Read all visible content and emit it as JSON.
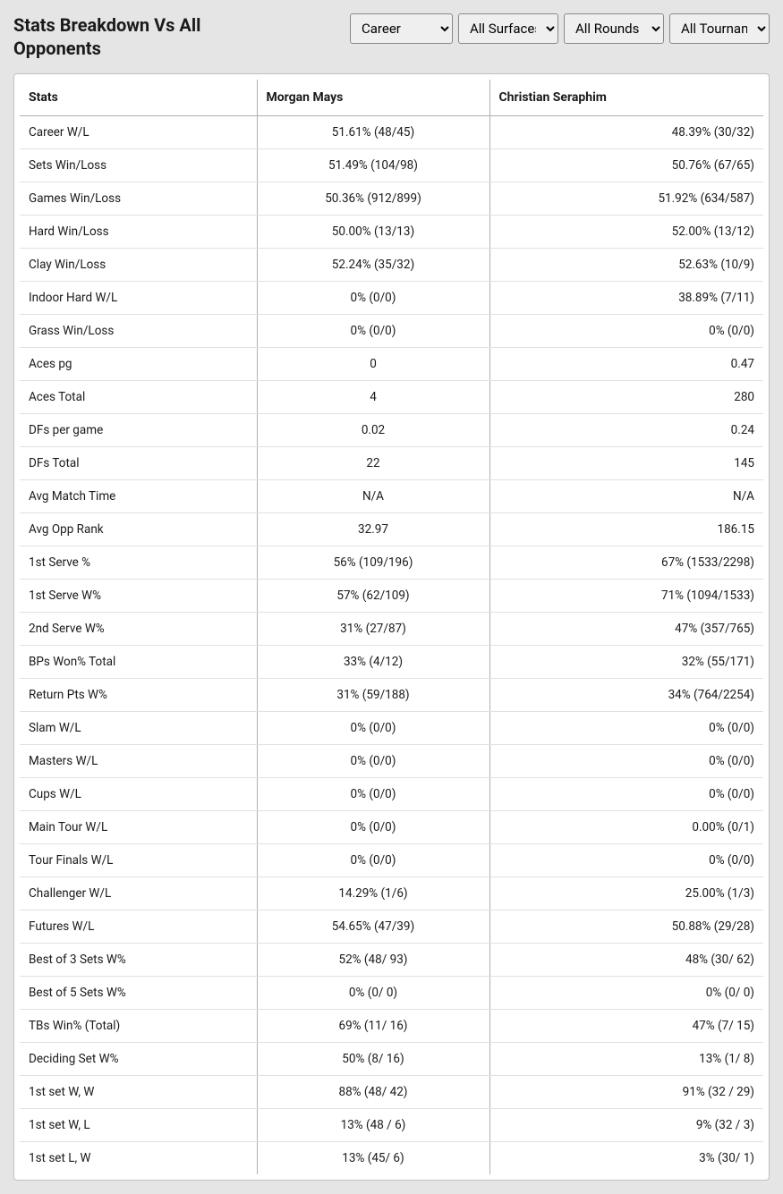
{
  "header": {
    "title": "Stats Breakdown Vs All Opponents"
  },
  "filters": {
    "time": {
      "selected": "Career",
      "options": [
        "Career"
      ]
    },
    "surface": {
      "selected": "All Surfaces",
      "options": [
        "All Surfaces"
      ]
    },
    "round": {
      "selected": "All Rounds",
      "options": [
        "All Rounds"
      ]
    },
    "tournament": {
      "selected": "All Tournaments",
      "options": [
        "All Tournaments"
      ]
    }
  },
  "table": {
    "columns": [
      "Stats",
      "Morgan Mays",
      "Christian Seraphim"
    ],
    "rows": [
      [
        "Career W/L",
        "51.61% (48/45)",
        "48.39% (30/32)"
      ],
      [
        "Sets Win/Loss",
        "51.49% (104/98)",
        "50.76% (67/65)"
      ],
      [
        "Games Win/Loss",
        "50.36% (912/899)",
        "51.92% (634/587)"
      ],
      [
        "Hard Win/Loss",
        "50.00% (13/13)",
        "52.00% (13/12)"
      ],
      [
        "Clay Win/Loss",
        "52.24% (35/32)",
        "52.63% (10/9)"
      ],
      [
        "Indoor Hard W/L",
        "0% (0/0)",
        "38.89% (7/11)"
      ],
      [
        "Grass Win/Loss",
        "0% (0/0)",
        "0% (0/0)"
      ],
      [
        "Aces pg",
        "0",
        "0.47"
      ],
      [
        "Aces Total",
        "4",
        "280"
      ],
      [
        "DFs per game",
        "0.02",
        "0.24"
      ],
      [
        "DFs Total",
        "22",
        "145"
      ],
      [
        "Avg Match Time",
        "N/A",
        "N/A"
      ],
      [
        "Avg Opp Rank",
        "32.97",
        "186.15"
      ],
      [
        "1st Serve %",
        "56% (109/196)",
        "67% (1533/2298)"
      ],
      [
        "1st Serve W%",
        "57% (62/109)",
        "71% (1094/1533)"
      ],
      [
        "2nd Serve W%",
        "31% (27/87)",
        "47% (357/765)"
      ],
      [
        "BPs Won% Total",
        "33% (4/12)",
        "32% (55/171)"
      ],
      [
        "Return Pts W%",
        "31% (59/188)",
        "34% (764/2254)"
      ],
      [
        "Slam W/L",
        "0% (0/0)",
        "0% (0/0)"
      ],
      [
        "Masters W/L",
        "0% (0/0)",
        "0% (0/0)"
      ],
      [
        "Cups W/L",
        "0% (0/0)",
        "0% (0/0)"
      ],
      [
        "Main Tour W/L",
        "0% (0/0)",
        "0.00% (0/1)"
      ],
      [
        "Tour Finals W/L",
        "0% (0/0)",
        "0% (0/0)"
      ],
      [
        "Challenger W/L",
        "14.29% (1/6)",
        "25.00% (1/3)"
      ],
      [
        "Futures W/L",
        "54.65% (47/39)",
        "50.88% (29/28)"
      ],
      [
        "Best of 3 Sets W%",
        "52% (48/ 93)",
        "48% (30/ 62)"
      ],
      [
        "Best of 5 Sets W%",
        "0% (0/ 0)",
        "0% (0/ 0)"
      ],
      [
        "TBs Win% (Total)",
        "69% (11/ 16)",
        "47% (7/ 15)"
      ],
      [
        "Deciding Set W%",
        "50% (8/ 16)",
        "13% (1/ 8)"
      ],
      [
        "1st set W, W",
        "88% (48/ 42)",
        "91% (32 / 29)"
      ],
      [
        "1st set W, L",
        "13% (48 / 6)",
        "9% (32 / 3)"
      ],
      [
        "1st set L, W",
        "13% (45/ 6)",
        "3% (30/ 1)"
      ]
    ]
  }
}
